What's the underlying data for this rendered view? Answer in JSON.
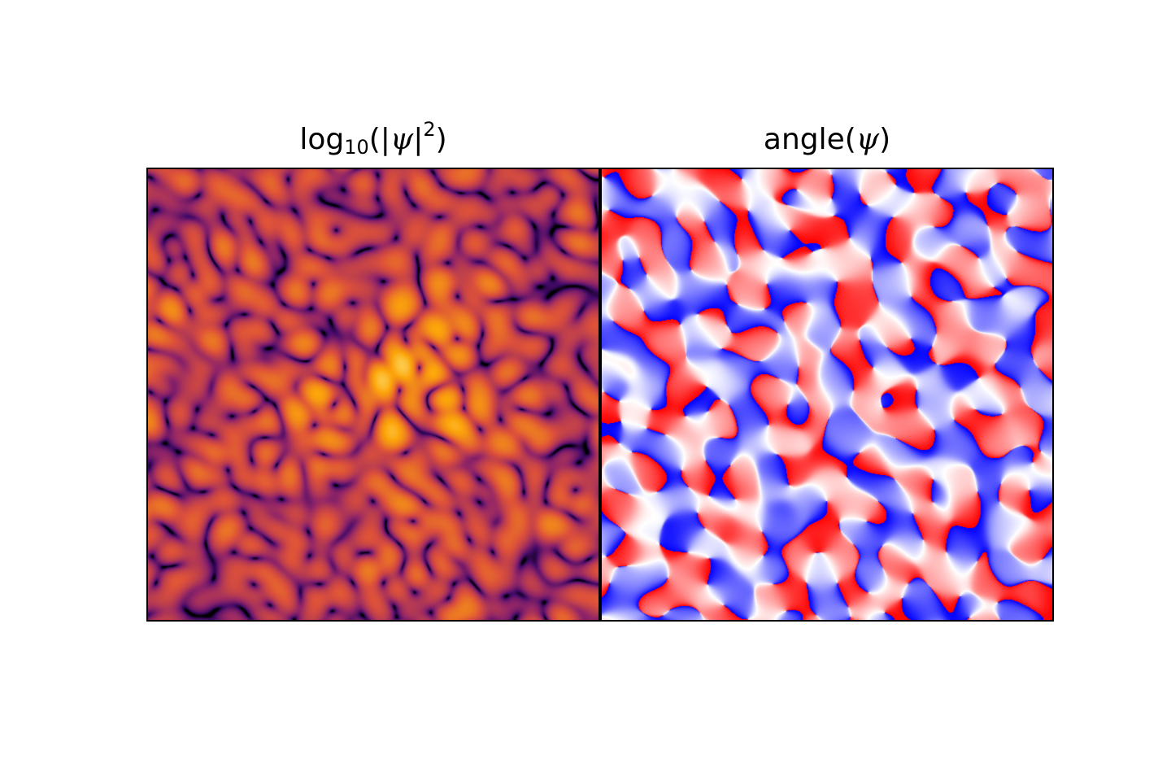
{
  "chart_data": [
    {
      "type": "heatmap",
      "title_parts": {
        "prefix": "log",
        "subscript": "10",
        "open": "(|",
        "symbol": "ψ",
        "close_bar": "|",
        "superscript": "2",
        "close": ")"
      },
      "colormap": "inferno",
      "colormap_stops": [
        "#000004",
        "#420a68",
        "#932667",
        "#dd513a",
        "#fca50a",
        "#fcffa4"
      ],
      "grid": false,
      "axes_ticks": false,
      "features": "noisy speckle field with a bright orange concentration near the center-left"
    },
    {
      "type": "heatmap",
      "title_parts": {
        "prefix": "angle(",
        "symbol": "ψ",
        "close": ")"
      },
      "colormap": "bwr",
      "colormap_stops": [
        "#0000ff",
        "#ffffff",
        "#ff0000"
      ],
      "grid": false,
      "axes_ticks": false,
      "features": "random phase domains alternating between blue, white and red"
    }
  ]
}
